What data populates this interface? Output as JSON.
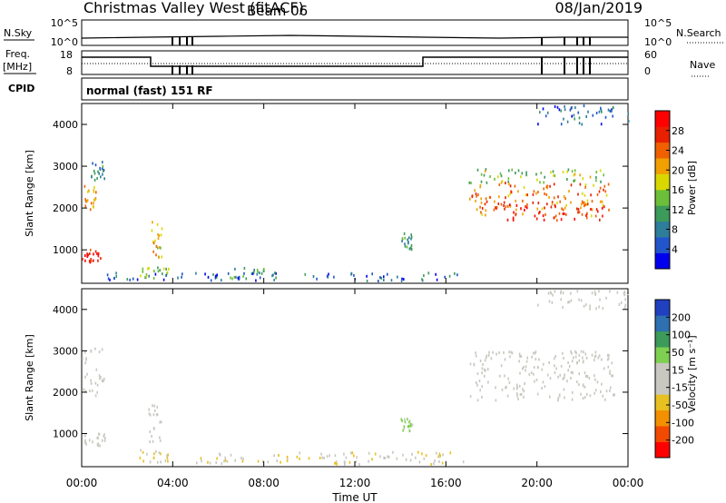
{
  "header": {
    "title": "Christmas Valley West (fitACF)",
    "beam": "Beam 06",
    "date": "08/Jan/2019"
  },
  "params": {
    "nsky_label": "N.Sky",
    "nsky_tick_hi": "10^5",
    "nsky_tick_lo": "10^0",
    "nsearch_label": "N.Search",
    "nsearch_tick_hi": "10^5",
    "nsearch_tick_lo": "10^0",
    "freq_label_1": "Freq.",
    "freq_label_2": "[MHz]",
    "freq_tick_hi": "18",
    "freq_tick_lo": "8",
    "nave_label": "Nave",
    "nave_tick_hi": "60",
    "nave_tick_lo": "0",
    "cpid_label": "CPID",
    "cpid_value": "normal (fast) 151 RF"
  },
  "colors": {
    "power_scale": [
      "#0000ee",
      "#2255cc",
      "#2e7d9a",
      "#3c9a5a",
      "#6cbf3a",
      "#d8d800",
      "#f0a000",
      "#f06000",
      "#e82000",
      "#ff0000"
    ],
    "velocity_scale": [
      "#ff0000",
      "#f24a00",
      "#f29000",
      "#e8c020",
      "#c8c8c0",
      "#c8c8c0",
      "#7ed050",
      "#3c9a5a",
      "#2e70b0",
      "#2040c0"
    ]
  },
  "chart_data": [
    {
      "type": "heatmap",
      "panel": "power",
      "ylabel": "Slant Range [km]",
      "xlabel": "",
      "y_ticks": [
        "1000",
        "2000",
        "3000",
        "4000"
      ],
      "ylim": [
        200,
        4500
      ],
      "colorbar_label": "Power [dB]",
      "colorbar_ticks": [
        "4",
        "8",
        "12",
        "16",
        "20",
        "24",
        "28"
      ],
      "colorbar_range": [
        0,
        30
      ],
      "regions": [
        {
          "t0": 0.0,
          "t1": 0.6,
          "r0": 1900,
          "r1": 2600,
          "v": 20
        },
        {
          "t0": 0.4,
          "t1": 1.0,
          "r0": 2600,
          "r1": 3100,
          "v": 8
        },
        {
          "t0": 0.0,
          "t1": 1.0,
          "r0": 700,
          "r1": 1000,
          "v": 26
        },
        {
          "t0": 2.9,
          "t1": 3.5,
          "r0": 800,
          "r1": 1700,
          "v": 18
        },
        {
          "t0": 2.5,
          "t1": 3.8,
          "r0": 300,
          "r1": 600,
          "v": 14
        },
        {
          "t0": 6.5,
          "t1": 8.0,
          "r0": 300,
          "r1": 600,
          "v": 10
        },
        {
          "t0": 1.0,
          "t1": 16.5,
          "r0": 250,
          "r1": 450,
          "v": 6
        },
        {
          "t0": 14.0,
          "t1": 14.5,
          "r0": 1000,
          "r1": 1400,
          "v": 9
        },
        {
          "t0": 17.0,
          "t1": 23.3,
          "r0": 2600,
          "r1": 2950,
          "v": 14
        },
        {
          "t0": 17.0,
          "t1": 23.3,
          "r0": 1800,
          "r1": 2600,
          "v": 22
        },
        {
          "t0": 18.0,
          "t1": 23.0,
          "r0": 1700,
          "r1": 2100,
          "v": 27
        },
        {
          "t0": 20.0,
          "t1": 24.0,
          "r0": 4000,
          "r1": 4450,
          "v": 6
        }
      ]
    },
    {
      "type": "heatmap",
      "panel": "velocity",
      "ylabel": "Slant Range [km]",
      "xlabel": "Time UT",
      "x_ticks": [
        "00:00",
        "04:00",
        "08:00",
        "12:00",
        "16:00",
        "20:00",
        "00:00"
      ],
      "y_ticks": [
        "1000",
        "2000",
        "3000",
        "4000"
      ],
      "ylim": [
        200,
        4500
      ],
      "colorbar_label": "Velocity [m s⁻¹]",
      "colorbar_ticks": [
        "-200",
        "-100",
        "-50",
        "-15",
        "15",
        "50",
        "100",
        "200"
      ],
      "colorbar_range": [
        -250,
        250
      ],
      "regions": [
        {
          "t0": 0.0,
          "t1": 1.0,
          "r0": 1900,
          "r1": 3100,
          "v": 0
        },
        {
          "t0": 0.0,
          "t1": 1.0,
          "r0": 700,
          "r1": 1000,
          "v": 0
        },
        {
          "t0": 2.9,
          "t1": 3.5,
          "r0": 800,
          "r1": 1700,
          "v": 0
        },
        {
          "t0": 2.5,
          "t1": 3.8,
          "r0": 300,
          "r1": 600,
          "v": -40
        },
        {
          "t0": 5.0,
          "t1": 17.0,
          "r0": 250,
          "r1": 550,
          "v": -40
        },
        {
          "t0": 14.0,
          "t1": 14.5,
          "r0": 1050,
          "r1": 1350,
          "v": 60
        },
        {
          "t0": 17.0,
          "t1": 23.4,
          "r0": 1800,
          "r1": 3000,
          "v": 0
        },
        {
          "t0": 20.0,
          "t1": 24.0,
          "r0": 4000,
          "r1": 4450,
          "v": 0
        }
      ]
    }
  ]
}
